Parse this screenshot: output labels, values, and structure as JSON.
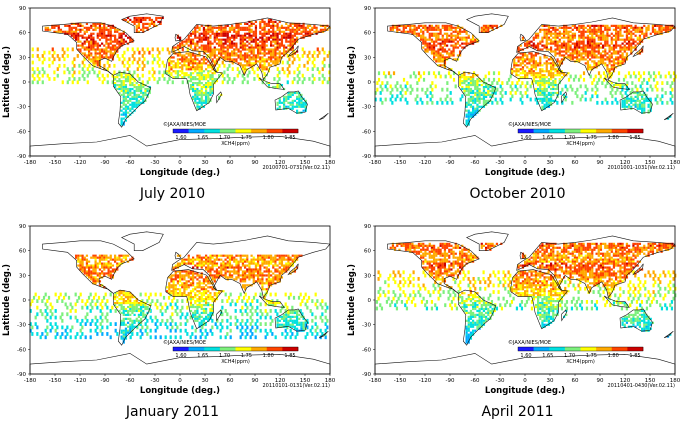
{
  "copyright": "©JAXA/NIES/MOE",
  "colorbar": {
    "label": "XCH4(ppm)",
    "ticks": [
      "1.60",
      "1.65",
      "1.70",
      "1.75",
      "1.80",
      "1.85"
    ],
    "colors": [
      "#1a1aff",
      "#00aaff",
      "#00e0e0",
      "#7cf07c",
      "#ffff00",
      "#ffaa00",
      "#ff4400",
      "#cc0000"
    ]
  },
  "axes": {
    "xlabel": "Longitude (deg.)",
    "ylabel": "Latitude (deg.)",
    "xticks": [
      "-180",
      "-150",
      "-120",
      "-90",
      "-60",
      "-30",
      "0",
      "30",
      "60",
      "90",
      "120",
      "150",
      "180"
    ],
    "yticks": [
      "90",
      "60",
      "30",
      "0",
      "-30",
      "-60",
      "-90"
    ]
  },
  "panels": [
    {
      "caption": "July 2010",
      "period": "20100701-0731(Ver.02.11)"
    },
    {
      "caption": "October 2010",
      "period": "20101001-1031(Ver.02.11)"
    },
    {
      "caption": "January 2011",
      "period": "20110101-0131(Ver.02.11)"
    },
    {
      "caption": "April 2011",
      "period": "20110401-0430(Ver.02.11)"
    }
  ]
}
